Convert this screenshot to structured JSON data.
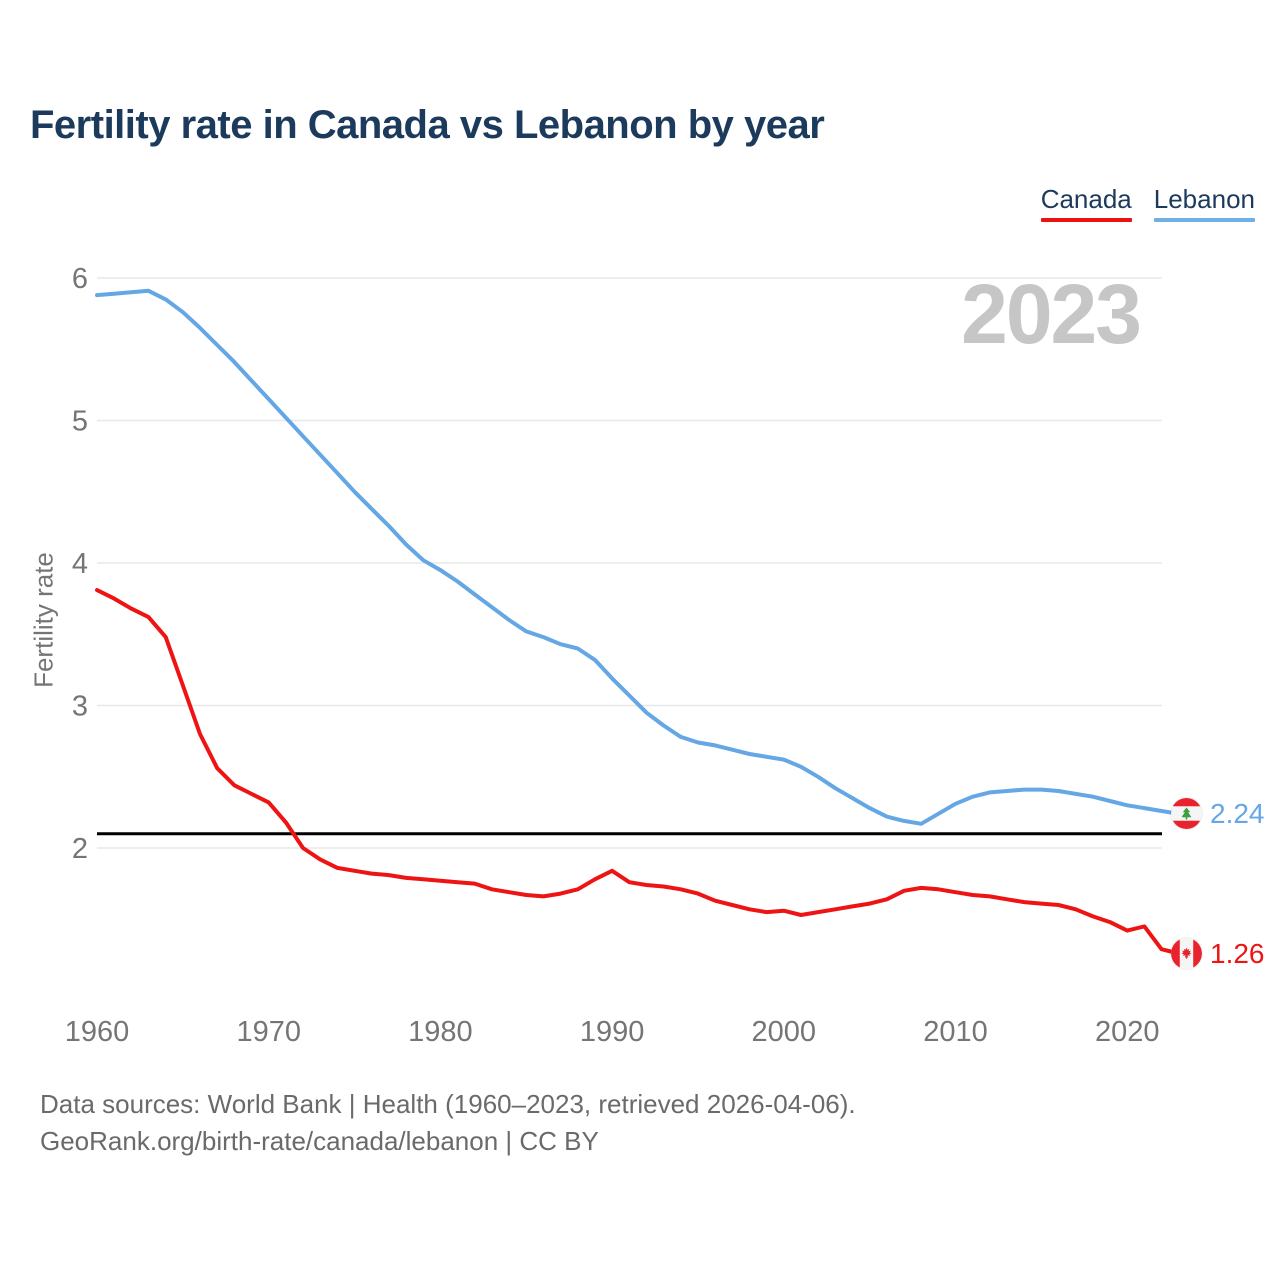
{
  "header": {
    "title": "Fertility rate in Canada vs Lebanon by year"
  },
  "legend": [
    {
      "label": "Canada",
      "color": "#ee1111"
    },
    {
      "label": "Lebanon",
      "color": "#6fb0e7"
    }
  ],
  "watermark": "2023",
  "chart_data": {
    "type": "line",
    "title": "Fertility rate in Canada vs Lebanon by year",
    "xlabel": "",
    "ylabel": "Fertility rate",
    "x_ticks": [
      1960,
      1970,
      1980,
      1990,
      2000,
      2010,
      2020
    ],
    "y_ticks": [
      2,
      3,
      4,
      5,
      6
    ],
    "ylim": [
      1.0,
      6.1
    ],
    "xlim": [
      1960,
      2023
    ],
    "grid": "horizontal",
    "legend_position": "top-right",
    "x": [
      1960,
      1961,
      1962,
      1963,
      1964,
      1965,
      1966,
      1967,
      1968,
      1969,
      1970,
      1971,
      1972,
      1973,
      1974,
      1975,
      1976,
      1977,
      1978,
      1979,
      1980,
      1981,
      1982,
      1983,
      1984,
      1985,
      1986,
      1987,
      1988,
      1989,
      1990,
      1991,
      1992,
      1993,
      1994,
      1995,
      1996,
      1997,
      1998,
      1999,
      2000,
      2001,
      2002,
      2003,
      2004,
      2005,
      2006,
      2007,
      2008,
      2009,
      2010,
      2011,
      2012,
      2013,
      2014,
      2015,
      2016,
      2017,
      2018,
      2019,
      2020,
      2021,
      2022,
      2023
    ],
    "series": [
      {
        "name": "Lebanon",
        "color": "#65a7e4",
        "values": [
          5.88,
          5.89,
          5.9,
          5.91,
          5.85,
          5.76,
          5.65,
          5.53,
          5.41,
          5.28,
          5.15,
          5.02,
          4.89,
          4.76,
          4.63,
          4.5,
          4.38,
          4.26,
          4.13,
          4.02,
          3.95,
          3.87,
          3.78,
          3.69,
          3.6,
          3.52,
          3.48,
          3.43,
          3.4,
          3.32,
          3.19,
          3.07,
          2.95,
          2.86,
          2.78,
          2.74,
          2.72,
          2.69,
          2.66,
          2.64,
          2.62,
          2.57,
          2.5,
          2.42,
          2.35,
          2.28,
          2.22,
          2.19,
          2.17,
          2.24,
          2.31,
          2.36,
          2.39,
          2.4,
          2.41,
          2.41,
          2.4,
          2.38,
          2.36,
          2.33,
          2.3,
          2.28,
          2.26,
          2.24
        ]
      },
      {
        "name": "Canada",
        "color": "#ee1414",
        "values": [
          3.81,
          3.75,
          3.68,
          3.62,
          3.48,
          3.14,
          2.8,
          2.56,
          2.44,
          2.38,
          2.32,
          2.18,
          2.0,
          1.92,
          1.86,
          1.84,
          1.82,
          1.81,
          1.79,
          1.78,
          1.77,
          1.76,
          1.75,
          1.71,
          1.69,
          1.67,
          1.66,
          1.68,
          1.71,
          1.78,
          1.84,
          1.76,
          1.74,
          1.73,
          1.71,
          1.68,
          1.63,
          1.6,
          1.57,
          1.55,
          1.56,
          1.53,
          1.55,
          1.57,
          1.59,
          1.61,
          1.64,
          1.7,
          1.72,
          1.71,
          1.69,
          1.67,
          1.66,
          1.64,
          1.62,
          1.61,
          1.6,
          1.57,
          1.52,
          1.48,
          1.42,
          1.45,
          1.29,
          1.26
        ]
      }
    ],
    "reference_line": {
      "value": 2.1,
      "color": "#000000"
    },
    "end_labels": [
      {
        "series": "Lebanon",
        "value": "2.24",
        "flag": "lebanon-flag",
        "text_color": "#65a7e4"
      },
      {
        "series": "Canada",
        "value": "1.26",
        "flag": "canada-flag",
        "text_color": "#ee1414"
      }
    ]
  },
  "footer": {
    "line1": "Data sources: World Bank | Health (1960–2023, retrieved 2026-04-06).",
    "line2": "GeoRank.org/birth-rate/canada/lebanon | CC BY"
  }
}
